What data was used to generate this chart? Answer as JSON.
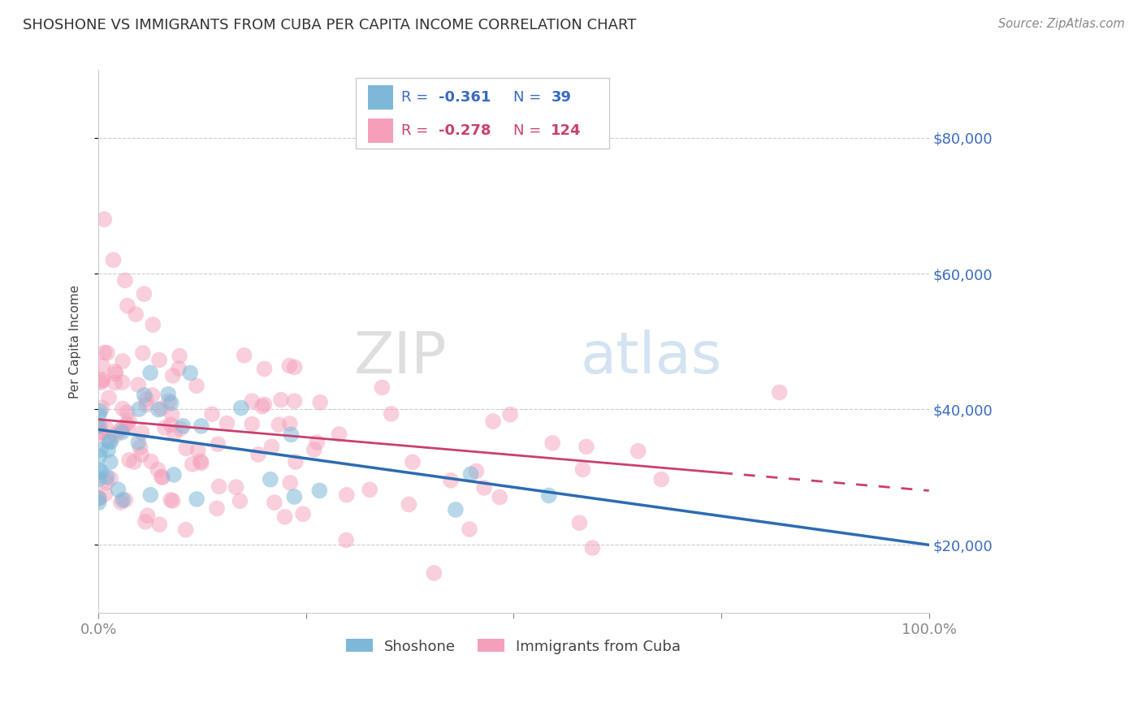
{
  "title": "SHOSHONE VS IMMIGRANTS FROM CUBA PER CAPITA INCOME CORRELATION CHART",
  "source_text": "Source: ZipAtlas.com",
  "ylabel": "Per Capita Income",
  "xlim": [
    0.0,
    1.0
  ],
  "ylim": [
    10000,
    90000
  ],
  "yticks": [
    20000,
    40000,
    60000,
    80000
  ],
  "ytick_labels": [
    "$20,000",
    "$40,000",
    "$60,000",
    "$80,000"
  ],
  "background_color": "#ffffff",
  "grid_color": "#cccccc",
  "blue_color": "#7eb8d9",
  "blue_line_color": "#2b6cb0",
  "pink_color": "#f5a0bb",
  "pink_line_color": "#c94070",
  "watermark_zip": "ZIP",
  "watermark_atlas": "atlas",
  "blue_line_y0": 37000,
  "blue_line_y1": 20000,
  "pink_line_y0": 38500,
  "pink_line_y1": 28000,
  "legend_R_blue": "-0.361",
  "legend_N_blue": "39",
  "legend_R_pink": "-0.278",
  "legend_N_pink": "124"
}
